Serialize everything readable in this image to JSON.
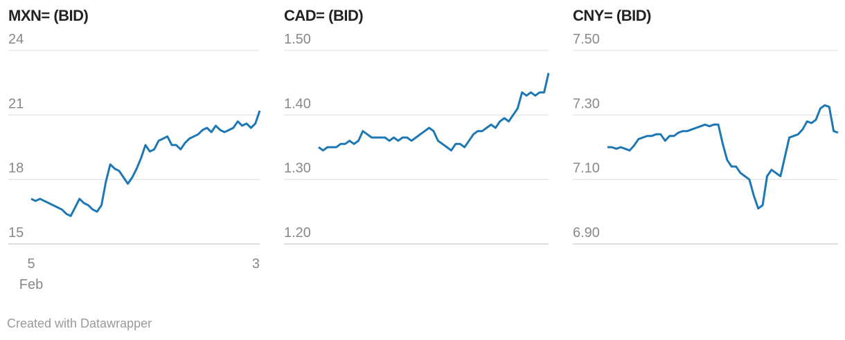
{
  "chart_data": [
    {
      "type": "line",
      "title": "MXN= (BID)",
      "color": "#1d77b4",
      "categories": [
        "5",
        null,
        null,
        null,
        null,
        null,
        null,
        null,
        null,
        null,
        null,
        null,
        null,
        null,
        null,
        null,
        null,
        null,
        null,
        null,
        null,
        null,
        null,
        null,
        null,
        null,
        null,
        null,
        null,
        null,
        null,
        null,
        null,
        null,
        null,
        null,
        null,
        null,
        null,
        null,
        null,
        null,
        null,
        null,
        null,
        null,
        null,
        null,
        null,
        null,
        null,
        null,
        "3"
      ],
      "x_month_label": "Feb",
      "values": [
        17.1,
        17.0,
        17.1,
        17.0,
        16.9,
        16.8,
        16.7,
        16.6,
        16.4,
        16.3,
        16.7,
        17.1,
        16.9,
        16.8,
        16.6,
        16.5,
        16.8,
        17.9,
        18.7,
        18.5,
        18.4,
        18.1,
        17.8,
        18.1,
        18.5,
        19.0,
        19.6,
        19.3,
        19.4,
        19.8,
        19.9,
        20.0,
        19.6,
        19.6,
        19.4,
        19.7,
        19.9,
        20.0,
        20.1,
        20.3,
        20.4,
        20.2,
        20.5,
        20.3,
        20.2,
        20.3,
        20.4,
        20.7,
        20.5,
        20.6,
        20.4,
        20.6,
        21.2
      ],
      "ylim": [
        15,
        24
      ],
      "yticks": [
        15,
        18,
        21,
        24
      ],
      "grid": true
    },
    {
      "type": "line",
      "title": "CAD= (BID)",
      "color": "#1d77b4",
      "values": [
        1.35,
        1.345,
        1.35,
        1.35,
        1.35,
        1.355,
        1.355,
        1.36,
        1.355,
        1.36,
        1.375,
        1.37,
        1.365,
        1.365,
        1.365,
        1.365,
        1.36,
        1.365,
        1.36,
        1.365,
        1.365,
        1.36,
        1.365,
        1.37,
        1.375,
        1.38,
        1.375,
        1.36,
        1.355,
        1.35,
        1.345,
        1.355,
        1.355,
        1.35,
        1.36,
        1.37,
        1.375,
        1.375,
        1.38,
        1.385,
        1.38,
        1.39,
        1.395,
        1.39,
        1.4,
        1.41,
        1.435,
        1.43,
        1.435,
        1.43,
        1.435,
        1.435,
        1.465
      ],
      "ylim": [
        1.2,
        1.5
      ],
      "yticks": [
        {
          "value": 1.2,
          "label": "1.20"
        },
        {
          "value": 1.3,
          "label": "1.30"
        },
        {
          "value": 1.4,
          "label": "1.40"
        },
        {
          "value": 1.5,
          "label": "1.50"
        }
      ],
      "grid": true
    },
    {
      "type": "line",
      "title": "CNY= (BID)",
      "color": "#1d77b4",
      "values": [
        7.2,
        7.2,
        7.195,
        7.2,
        7.195,
        7.19,
        7.205,
        7.225,
        7.23,
        7.235,
        7.235,
        7.24,
        7.24,
        7.22,
        7.235,
        7.235,
        7.245,
        7.25,
        7.25,
        7.255,
        7.26,
        7.265,
        7.27,
        7.265,
        7.27,
        7.27,
        7.21,
        7.16,
        7.14,
        7.14,
        7.12,
        7.11,
        7.1,
        7.05,
        7.01,
        7.02,
        7.11,
        7.13,
        7.12,
        7.11,
        7.17,
        7.23,
        7.235,
        7.24,
        7.255,
        7.28,
        7.275,
        7.285,
        7.32,
        7.33,
        7.325,
        7.25,
        7.245
      ],
      "ylim": [
        6.9,
        7.5
      ],
      "yticks": [
        {
          "value": 6.9,
          "label": "6.90"
        },
        {
          "value": 7.1,
          "label": "7.10"
        },
        {
          "value": 7.3,
          "label": "7.30"
        },
        {
          "value": 7.5,
          "label": "7.50"
        }
      ],
      "grid": true
    }
  ],
  "footer": "Created with Datawrapper"
}
